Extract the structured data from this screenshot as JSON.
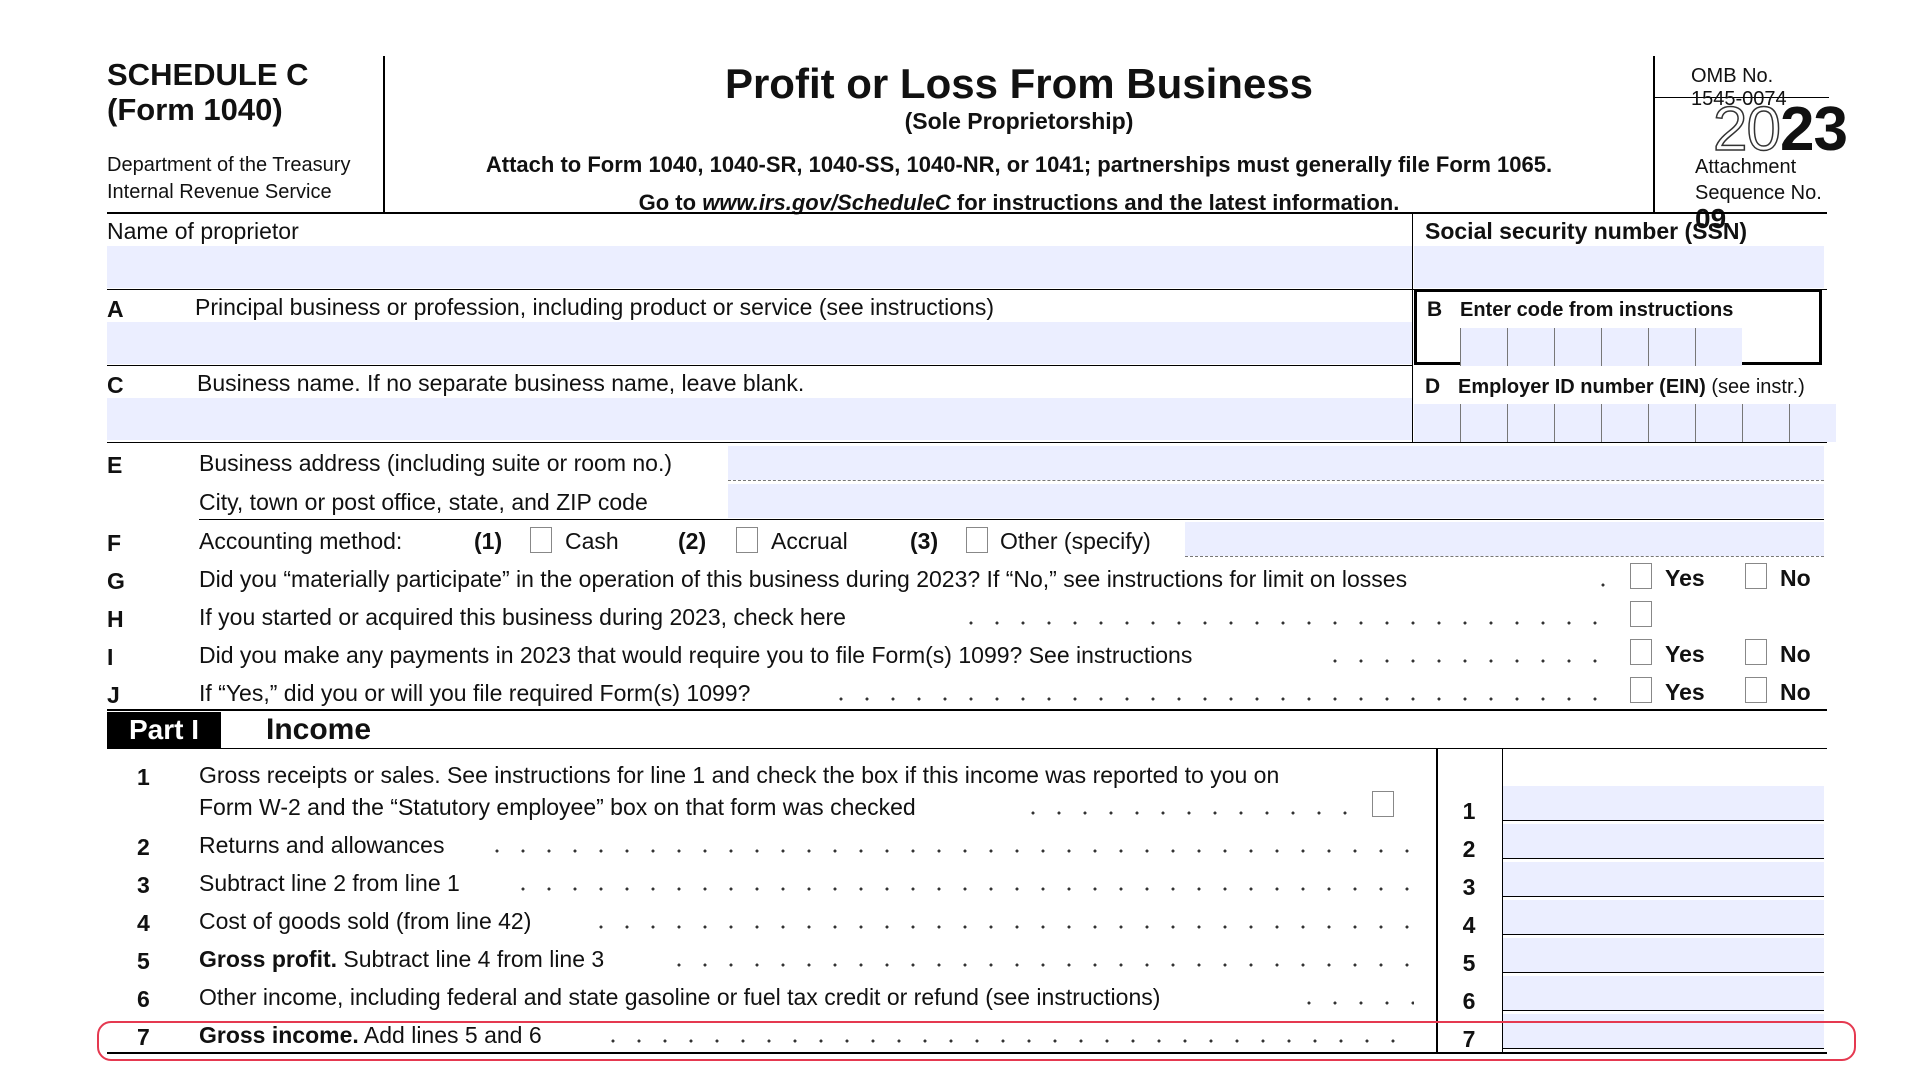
{
  "header": {
    "schedule": "SCHEDULE C",
    "form": "(Form 1040)",
    "department": "Department of the Treasury",
    "irs": "Internal Revenue Service",
    "title": "Profit or Loss From Business",
    "subtitle": "(Sole Proprietorship)",
    "attach_text": "Attach to Form 1040, 1040-SR, 1040-SS, 1040-NR, or 1041; partnerships must generally file Form 1065.",
    "goto_prefix": "Go to ",
    "goto_url": "www.irs.gov/ScheduleC",
    "goto_suffix": " for instructions and the latest information.",
    "omb": "OMB No. 1545-0074",
    "year_prefix": "20",
    "year_suffix": "23",
    "attachment_label": "Attachment",
    "sequence_label": "Sequence No.",
    "sequence_no": "09"
  },
  "fields": {
    "name_label": "Name of proprietor",
    "ssn_label": "Social security number (SSN)",
    "a_letter": "A",
    "a_label": "Principal business or profession, including product or service (see instructions)",
    "b_letter": "B",
    "b_label": "Enter code from instructions",
    "c_letter": "C",
    "c_label": "Business name. If no separate business name, leave blank.",
    "d_letter": "D",
    "d_label": "Employer ID number (EIN)",
    "d_note": " (see instr.)",
    "e_letter": "E",
    "e_label1": "Business address (including suite or room no.)",
    "e_label2": "City, town or post office, state, and ZIP code",
    "f_letter": "F",
    "f_label": "Accounting method:",
    "f_opt1_num": "(1)",
    "f_opt1": "Cash",
    "f_opt2_num": "(2)",
    "f_opt2": "Accrual",
    "f_opt3_num": "(3)",
    "f_opt3": "Other (specify)",
    "g_letter": "G",
    "g_label": "Did you “materially participate” in the operation of this business during 2023? If “No,” see instructions for limit on losses",
    "h_letter": "H",
    "h_label": "If you started or acquired this business during 2023, check here",
    "i_letter": "I",
    "i_label": "Did you make any payments in 2023 that would require you to file Form(s) 1099? See instructions",
    "j_letter": "J",
    "j_label": "If “Yes,” did you or will you file required Form(s) 1099?",
    "yes": "Yes",
    "no": "No"
  },
  "part": {
    "badge": "Part I",
    "title": "Income"
  },
  "lines": [
    {
      "num": "1",
      "text1": "Gross receipts or sales. See instructions for line 1 and check the box if this income was reported to you on",
      "text2": "Form W-2 and the “Statutory employee” box on that form was checked",
      "box": "1"
    },
    {
      "num": "2",
      "text": "Returns and allowances",
      "box": "2"
    },
    {
      "num": "3",
      "text": "Subtract line 2 from line 1",
      "box": "3"
    },
    {
      "num": "4",
      "text": "Cost of goods sold (from line 42)",
      "box": "4"
    },
    {
      "num": "5",
      "bold": "Gross profit.",
      "text": " Subtract line 4 from line 3",
      "box": "5"
    },
    {
      "num": "6",
      "text": "Other income, including federal and state gasoline or fuel tax credit or refund (see instructions)",
      "box": "6"
    },
    {
      "num": "7",
      "bold": "Gross income.",
      "text": " Add lines 5 and 6",
      "box": "7"
    }
  ],
  "colors": {
    "fill": "#ebeeff",
    "highlight": "#e53950"
  }
}
